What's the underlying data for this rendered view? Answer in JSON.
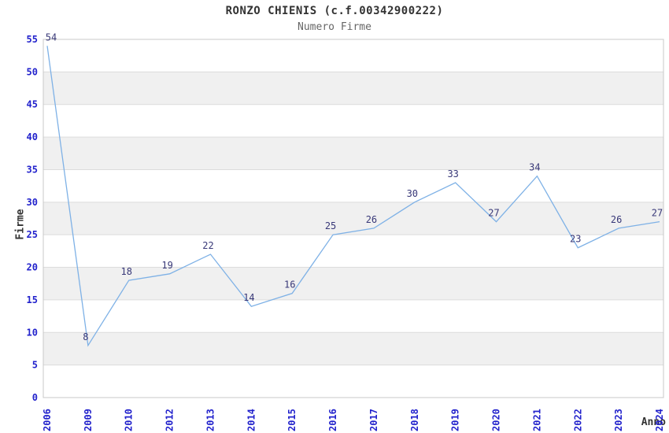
{
  "header": {
    "title": "RONZO CHIENIS (c.f.00342900222)",
    "subtitle": "Numero Firme"
  },
  "chart_data": {
    "type": "line",
    "title": "RONZO CHIENIS (c.f.00342900222)",
    "subtitle": "Numero Firme",
    "xlabel": "Anno",
    "ylabel": "Firme",
    "categories": [
      "2006",
      "2009",
      "2010",
      "2012",
      "2013",
      "2014",
      "2015",
      "2016",
      "2017",
      "2018",
      "2019",
      "2020",
      "2021",
      "2022",
      "2023",
      "2024"
    ],
    "values": [
      54,
      8,
      18,
      19,
      22,
      14,
      16,
      25,
      26,
      30,
      33,
      27,
      34,
      23,
      26,
      27
    ],
    "ylim": [
      0,
      55
    ],
    "ytick_step": 5,
    "yticks": [
      0,
      5,
      10,
      15,
      20,
      25,
      30,
      35,
      40,
      45,
      50,
      55
    ],
    "grid": true,
    "legend": "none",
    "band_style": "alternating horizontal gray bands between gridlines",
    "colors": {
      "line": "#7eb1e6",
      "axis_text": "#2222cc",
      "value_label": "#383878",
      "band": "#f0f0f0",
      "grid": "#dcdcdc",
      "border": "#c8c8c8",
      "title": "#333333",
      "subtitle": "#666666"
    }
  }
}
